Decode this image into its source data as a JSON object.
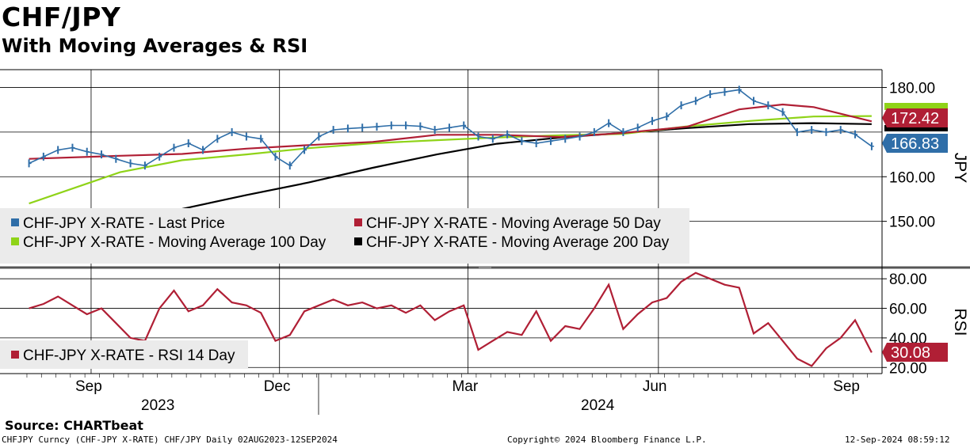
{
  "header": {
    "title": "CHF/JPY",
    "subtitle": "With Moving Averages & RSI"
  },
  "footer": {
    "source": "Source: CHARTbeat",
    "left": "CHFJPY Curncy (CHF-JPY X-RATE) CHF/JPY  Daily 02AUG2023-12SEP2024",
    "center": "Copyright© 2024 Bloomberg Finance L.P.",
    "right": "12-Sep-2024 08:59:12"
  },
  "colors": {
    "price": "#2f6ea8",
    "ma50": "#b01f35",
    "ma100": "#8fd318",
    "ma200": "#000000",
    "rsi": "#b01f35",
    "legend_bg": "#ebebeb"
  },
  "chart_data": [
    {
      "type": "line",
      "panel": "price",
      "ylabel": "JPY",
      "ylim": [
        140.0,
        184.0
      ],
      "yticks": [
        "150.00",
        "160.00",
        "180.00"
      ],
      "grid": true,
      "legend_position": "bottom-left",
      "x_months": [
        "Sep",
        "Dec",
        "Mar",
        "Jun",
        "Sep"
      ],
      "x_years": [
        "2023",
        "2024"
      ],
      "last_value_labels": [
        {
          "series": "ma50",
          "text": "172.42"
        },
        {
          "series": "price",
          "text": "166.83"
        }
      ],
      "series": [
        {
          "key": "price",
          "name": "CHF-JPY X-RATE - Last Price",
          "x": [
            "2023-08-02",
            "2023-08-09",
            "2023-08-16",
            "2023-08-23",
            "2023-08-30",
            "2023-09-06",
            "2023-09-13",
            "2023-09-20",
            "2023-09-27",
            "2023-10-04",
            "2023-10-11",
            "2023-10-18",
            "2023-10-25",
            "2023-11-01",
            "2023-11-08",
            "2023-11-15",
            "2023-11-22",
            "2023-11-29",
            "2023-12-06",
            "2023-12-13",
            "2023-12-20",
            "2023-12-27",
            "2024-01-03",
            "2024-01-10",
            "2024-01-17",
            "2024-01-24",
            "2024-01-31",
            "2024-02-07",
            "2024-02-14",
            "2024-02-21",
            "2024-02-28",
            "2024-03-06",
            "2024-03-13",
            "2024-03-20",
            "2024-03-27",
            "2024-04-03",
            "2024-04-10",
            "2024-04-17",
            "2024-04-24",
            "2024-05-01",
            "2024-05-08",
            "2024-05-15",
            "2024-05-22",
            "2024-05-29",
            "2024-06-05",
            "2024-06-12",
            "2024-06-19",
            "2024-06-26",
            "2024-07-03",
            "2024-07-10",
            "2024-07-17",
            "2024-07-24",
            "2024-07-31",
            "2024-08-07",
            "2024-08-14",
            "2024-08-21",
            "2024-08-28",
            "2024-09-04",
            "2024-09-12"
          ],
          "values": [
            163.0,
            164.5,
            166.0,
            166.5,
            165.6,
            165.0,
            164.0,
            163.0,
            162.5,
            164.5,
            166.5,
            167.5,
            166.0,
            168.5,
            170.0,
            169.0,
            168.5,
            164.5,
            162.5,
            166.0,
            169.0,
            170.5,
            170.8,
            171.0,
            171.2,
            171.5,
            171.5,
            171.3,
            170.5,
            171.0,
            171.5,
            169.0,
            168.5,
            169.5,
            168.0,
            167.5,
            168.0,
            168.5,
            169.0,
            170.0,
            172.0,
            170.0,
            171.0,
            172.5,
            173.5,
            176.0,
            177.0,
            178.5,
            179.0,
            179.5,
            177.0,
            176.0,
            174.5,
            170.0,
            170.5,
            170.0,
            170.5,
            169.5,
            166.83
          ]
        },
        {
          "key": "ma50",
          "name": "CHF-JPY X-RATE - Moving Average 50 Day",
          "x": [
            "2023-08-02",
            "2023-09-15",
            "2023-10-15",
            "2023-11-15",
            "2023-12-15",
            "2024-01-15",
            "2024-02-15",
            "2024-03-15",
            "2024-04-15",
            "2024-05-15",
            "2024-06-15",
            "2024-07-10",
            "2024-07-31",
            "2024-08-15",
            "2024-09-12"
          ],
          "values": [
            164.0,
            164.7,
            165.1,
            166.3,
            167.1,
            167.8,
            169.4,
            169.4,
            168.9,
            169.8,
            171.2,
            175.1,
            176.2,
            175.6,
            172.42
          ]
        },
        {
          "key": "ma100",
          "name": "CHF-JPY X-RATE - Moving Average 100 Day",
          "x": [
            "2023-08-02",
            "2023-09-15",
            "2023-10-15",
            "2023-11-15",
            "2023-12-15",
            "2024-01-15",
            "2024-02-15",
            "2024-03-15",
            "2024-04-15",
            "2024-05-15",
            "2024-06-15",
            "2024-07-15",
            "2024-08-15",
            "2024-09-12"
          ],
          "values": [
            154.0,
            161.0,
            163.7,
            165.0,
            166.4,
            167.5,
            168.2,
            168.8,
            169.3,
            169.6,
            171.3,
            172.5,
            173.5,
            173.6
          ]
        },
        {
          "key": "ma200",
          "name": "CHF-JPY X-RATE - Moving Average 200 Day",
          "x": [
            "2023-08-02",
            "2023-09-15",
            "2023-10-15",
            "2023-11-15",
            "2023-12-15",
            "2024-01-15",
            "2024-02-15",
            "2024-03-15",
            "2024-04-15",
            "2024-05-15",
            "2024-06-15",
            "2024-07-15",
            "2024-08-15",
            "2024-09-12"
          ],
          "values": [
            147.5,
            150.2,
            152.8,
            155.9,
            158.7,
            162.0,
            165.0,
            167.4,
            168.8,
            169.8,
            170.9,
            171.8,
            172.0,
            171.8
          ]
        }
      ]
    },
    {
      "type": "line",
      "panel": "rsi",
      "ylabel": "RSI",
      "ylim": [
        18.0,
        86.0
      ],
      "yticks": [
        "20.00",
        "40.00",
        "60.00",
        "80.00"
      ],
      "grid": true,
      "legend_position": "bottom-left",
      "last_value_labels": [
        {
          "series": "rsi",
          "text": "30.08"
        }
      ],
      "series": [
        {
          "key": "rsi",
          "name": "CHF-JPY X-RATE - RSI 14 Day",
          "x": [
            "2023-08-02",
            "2023-08-09",
            "2023-08-16",
            "2023-08-23",
            "2023-08-30",
            "2023-09-06",
            "2023-09-13",
            "2023-09-20",
            "2023-09-27",
            "2023-10-04",
            "2023-10-11",
            "2023-10-18",
            "2023-10-25",
            "2023-11-01",
            "2023-11-08",
            "2023-11-15",
            "2023-11-22",
            "2023-11-29",
            "2023-12-06",
            "2023-12-13",
            "2023-12-20",
            "2023-12-27",
            "2024-01-03",
            "2024-01-10",
            "2024-01-17",
            "2024-01-24",
            "2024-01-31",
            "2024-02-07",
            "2024-02-14",
            "2024-02-21",
            "2024-02-28",
            "2024-03-06",
            "2024-03-13",
            "2024-03-20",
            "2024-03-27",
            "2024-04-03",
            "2024-04-10",
            "2024-04-17",
            "2024-04-24",
            "2024-05-01",
            "2024-05-08",
            "2024-05-15",
            "2024-05-22",
            "2024-05-29",
            "2024-06-05",
            "2024-06-12",
            "2024-06-19",
            "2024-06-26",
            "2024-07-03",
            "2024-07-10",
            "2024-07-17",
            "2024-07-24",
            "2024-07-31",
            "2024-08-07",
            "2024-08-14",
            "2024-08-21",
            "2024-08-28",
            "2024-09-04",
            "2024-09-12"
          ],
          "values": [
            60,
            63,
            68,
            62,
            56,
            60,
            50,
            40,
            38,
            60,
            72,
            58,
            62,
            73,
            64,
            62,
            57,
            38,
            42,
            58,
            62,
            66,
            62,
            64,
            60,
            62,
            57,
            62,
            52,
            58,
            62,
            32,
            38,
            44,
            42,
            58,
            38,
            48,
            46,
            60,
            76,
            46,
            56,
            64,
            67,
            78,
            84,
            80,
            76,
            74,
            43,
            50,
            38,
            26,
            21,
            33,
            40,
            52,
            30.08
          ]
        }
      ]
    }
  ]
}
